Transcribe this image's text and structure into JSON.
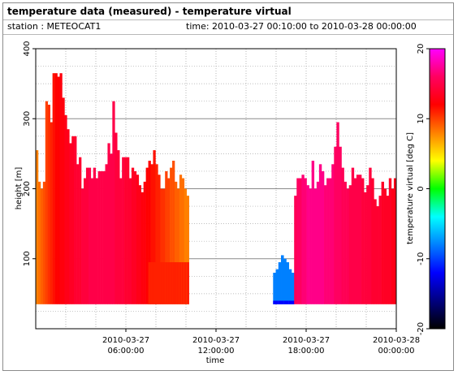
{
  "header": {
    "title": "temperature data (measured) - temperature virtual",
    "station": "station : METEOCAT1",
    "time_range": "time: 2010-03-27 00:10:00 to 2010-03-28 00:00:00"
  },
  "chart_data": {
    "type": "heatmap",
    "xlabel": "time",
    "ylabel": "height [m]",
    "colorbar_label": "temperature virtual [deg C]",
    "xlim": [
      0,
      24
    ],
    "ylim": [
      0,
      400
    ],
    "clim": [
      -20,
      20
    ],
    "grid": true,
    "x_ticks": [
      {
        "value": 6,
        "line1": "2010-03-27",
        "line2": "06:00:00"
      },
      {
        "value": 12,
        "line1": "2010-03-27",
        "line2": "12:00:00"
      },
      {
        "value": 18,
        "line1": "2010-03-27",
        "line2": "18:00:00"
      },
      {
        "value": 24,
        "line1": "2010-03-28",
        "line2": "00:00:00"
      }
    ],
    "y_ticks": [
      100,
      200,
      300,
      400
    ],
    "colorbar_ticks": [
      20,
      10,
      0,
      -10,
      -20
    ],
    "colorbar_colors": [
      "#ff00ff",
      "#ff0060",
      "#ff0000",
      "#ff8000",
      "#ffff00",
      "#00ff00",
      "#00ffff",
      "#0080ff",
      "#0000ff",
      "#000080",
      "#000000"
    ],
    "base_height": 35,
    "segments": [
      {
        "t_start": 0,
        "t_end": 10.2,
        "tops": [
          255,
          210,
          200,
          210,
          325,
          320,
          295,
          365,
          365,
          360,
          365,
          330,
          305,
          285,
          265,
          275,
          275,
          235,
          245,
          200,
          215,
          230,
          230,
          215,
          230,
          215,
          225,
          225,
          225,
          235,
          265,
          250,
          325,
          280,
          255,
          215,
          245,
          245,
          245,
          215,
          230,
          225,
          220,
          205,
          195,
          210,
          230,
          240,
          235,
          255,
          235,
          220,
          200,
          200,
          225,
          215,
          230,
          240,
          210,
          200,
          220,
          215,
          200,
          190
        ],
        "temps": [
          8,
          8.5,
          9,
          9.5,
          10,
          10.5,
          11,
          11.5,
          12,
          12,
          12.5,
          12.5,
          13,
          13,
          13.5,
          13.5,
          14,
          14,
          14,
          14.5,
          14.5,
          14.5,
          15,
          15,
          15,
          15,
          15,
          15,
          15,
          15,
          15,
          15,
          15,
          14.5,
          14.5,
          14.5,
          14.5,
          14,
          14,
          14,
          13.5,
          13.5,
          13,
          13,
          12.5,
          12.5,
          12,
          12,
          11.5,
          11.5,
          11,
          11,
          10.5,
          10.5,
          10,
          10,
          9.5,
          9.5,
          9,
          9,
          8.5,
          8.5,
          8,
          8
        ],
        "cool_base": {
          "from": 0.72,
          "temp": 11,
          "top": 95
        }
      },
      {
        "t_start": 15.8,
        "t_end": 17.2,
        "tops": [
          80,
          85,
          95,
          105,
          100,
          95,
          85,
          80
        ],
        "temps": [
          -8,
          -8,
          -8,
          -8,
          -8,
          -8,
          -8,
          -8
        ],
        "deep_base_temp": -12,
        "deep_base_top": 40
      },
      {
        "t_start": 17.2,
        "t_end": 24,
        "tops": [
          190,
          215,
          215,
          220,
          215,
          205,
          200,
          240,
          200,
          210,
          235,
          225,
          205,
          215,
          215,
          235,
          260,
          295,
          260,
          230,
          210,
          200,
          205,
          230,
          215,
          220,
          220,
          215,
          195,
          205,
          230,
          215,
          185,
          175,
          190,
          210,
          200,
          190,
          215,
          200,
          215
        ],
        "temps": [
          15.5,
          16,
          16,
          16.5,
          16.5,
          17,
          17,
          17,
          17,
          17,
          17,
          17,
          16.5,
          16.5,
          16.5,
          16.5,
          16,
          16,
          16,
          15.5,
          15.5,
          15.5,
          15,
          15,
          15,
          15,
          15,
          14.5,
          14.5,
          14.5,
          14.5,
          14,
          14,
          14,
          14,
          13.5,
          13.5,
          13.5,
          13.5,
          13,
          13
        ]
      }
    ]
  }
}
